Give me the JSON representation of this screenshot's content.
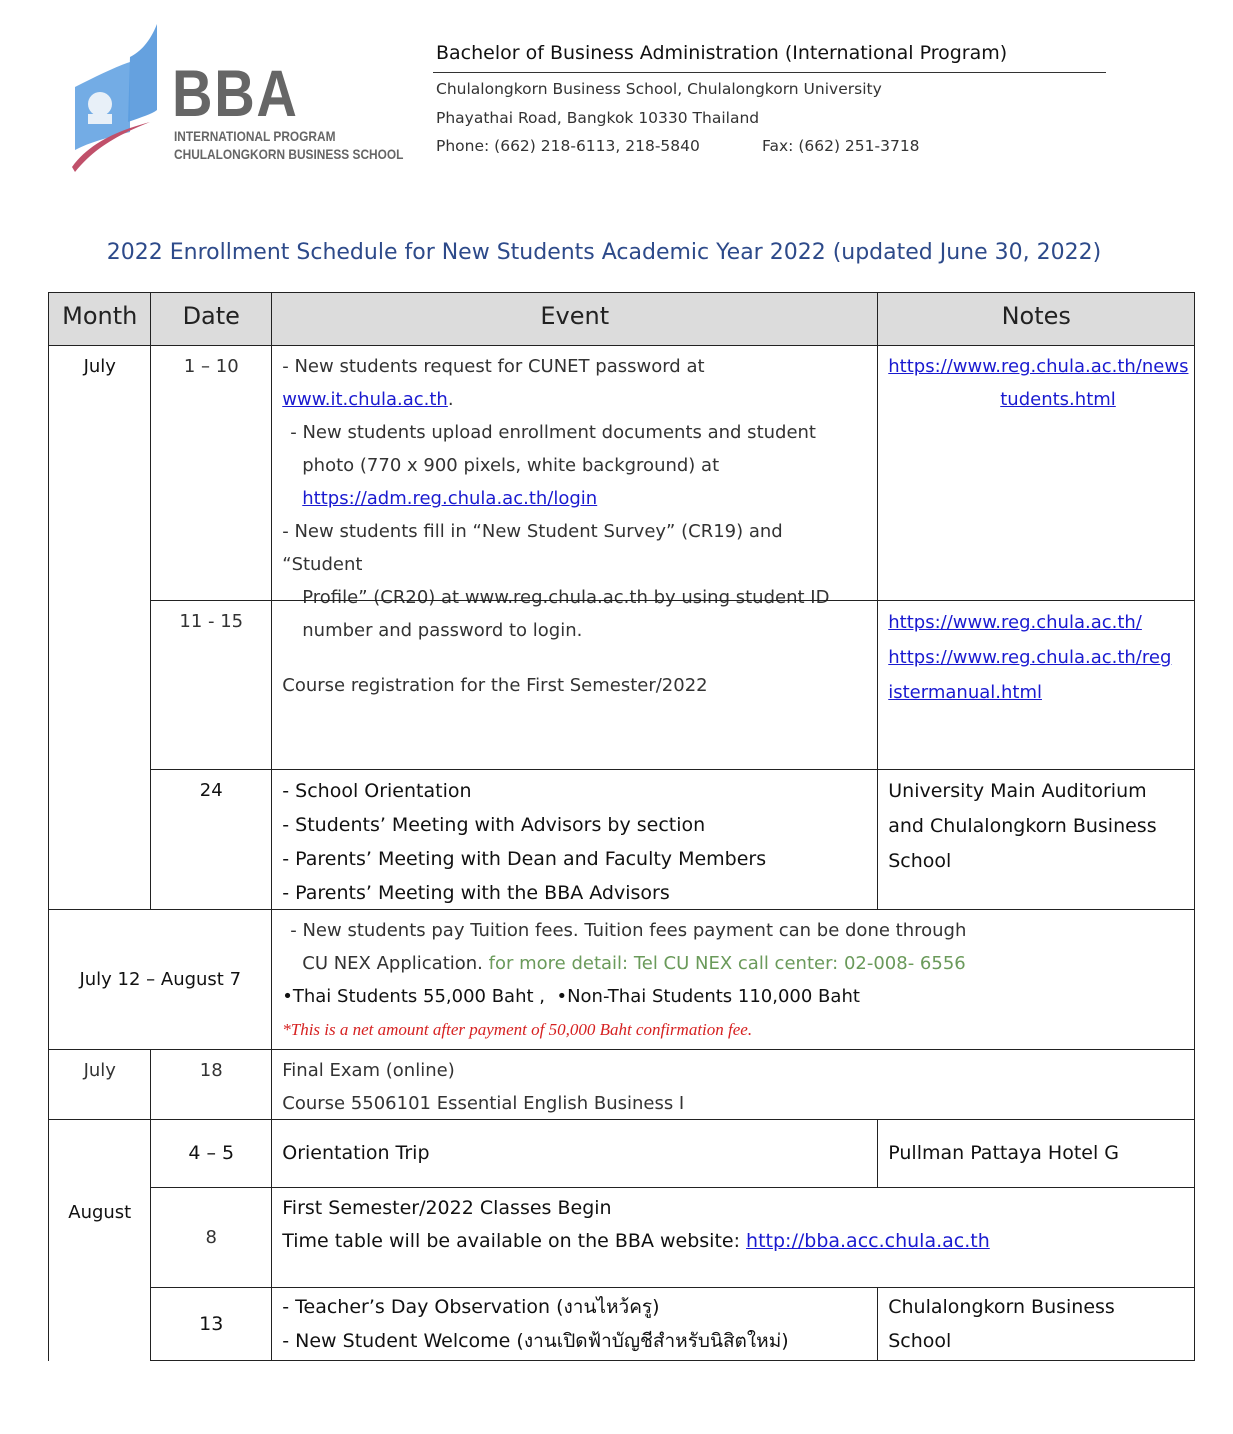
{
  "header": {
    "logo": {
      "wordmark": "BBA",
      "line1": "INTERNATIONAL PROGRAM",
      "line2": "CHULALONGKORN BUSINESS SCHOOL"
    },
    "program": "Bachelor of Business Administration (International Program)",
    "school": "Chulalongkorn Business School, Chulalongkorn University",
    "address": "Phayathai Road, Bangkok 10330 Thailand",
    "phone": "Phone: (662) 218-6113, 218-5840",
    "fax": "Fax: (662) 251-3718"
  },
  "title": "2022 Enrollment Schedule for New Students Academic Year 2022 (updated June 30, 2022)",
  "table": {
    "headers": [
      "Month",
      "Date",
      "Event",
      "Notes"
    ],
    "rows": {
      "r1": {
        "month": "July",
        "date": "1 – 10",
        "e1": "- New students request for CUNET password at ",
        "e1_link": "www.it.chula.ac.th",
        "e1_end": ".",
        "e2": "- New students upload enrollment documents and student",
        "e3": "photo (770 x 900 pixels, white background) at",
        "e4_link": "https://adm.reg.chula.ac.th/login",
        "e5": "-   New students fill in “New Student Survey” (CR19) and “Student",
        "e6": "Profile” (CR20) at www.reg.chula.ac.th by using student ID",
        "e7": "number and password to login.",
        "note_link1": "https://www.reg.chula.ac.th/news",
        "note_link2": "tudents.html"
      },
      "r2": {
        "date": "11 - 15",
        "event": "Course registration for the First Semester/2022",
        "note_link1": "https://www.reg.chula.ac.th/",
        "note_link2": "https://www.reg.chula.ac.th/reg",
        "note_link3": "istermanual.html"
      },
      "r3": {
        "date": "24",
        "events": [
          "- School Orientation",
          "- Students’ Meeting with Advisors by section",
          "- Parents’ Meeting with Dean and Faculty Members",
          "- Parents’ Meeting with the BBA Advisors"
        ],
        "notes": [
          "University Main Auditorium",
          "and Chulalongkorn Business",
          "School"
        ]
      },
      "r4": {
        "period": "July 12 – August 7",
        "e1": "- New students pay Tuition fees. Tuition fees payment can be done through",
        "e2": "CU  NEX Application. ",
        "e2_green": "for more detail: Tel CU NEX call center: 02-008- 6556",
        "fee_thai": "Thai Students 55,000 Baht ,",
        "fee_nonthai": "Non-Thai Students  110,000  Baht",
        "footnote": "*This is a net amount after payment of 50,000 Baht confirmation fee."
      },
      "r5": {
        "month": "July",
        "date": "18",
        "e1": "Final Exam (online)",
        "e2": "Course 5506101 Essential English Business I"
      },
      "r6": {
        "month": "August",
        "date": "4 – 5",
        "event": "Orientation Trip",
        "note": "Pullman Pattaya Hotel G"
      },
      "r7": {
        "date": "8",
        "e1": "First Semester/2022 Classes Begin",
        "e2": "Time table will be available on the BBA website: ",
        "e2_link": "http://bba.acc.chula.ac.th"
      },
      "r8": {
        "date": "13",
        "e1": "- Teacher’s Day Observation (งานไหว้ครู)",
        "e2": "- New Student Welcome (งานเปิดฟ้าบัญชีสำหรับนิสิตใหม่)",
        "notes": [
          "Chulalongkorn Business",
          "School"
        ]
      }
    }
  },
  "colors": {
    "title": "#2d4a8a",
    "link": "#1a1ad0",
    "green_note": "#6a9a5a",
    "red_note": "#d62020",
    "header_bg": "#dcdcdc",
    "logo_blue": "#4a90d9",
    "logo_red": "#c0506a"
  }
}
